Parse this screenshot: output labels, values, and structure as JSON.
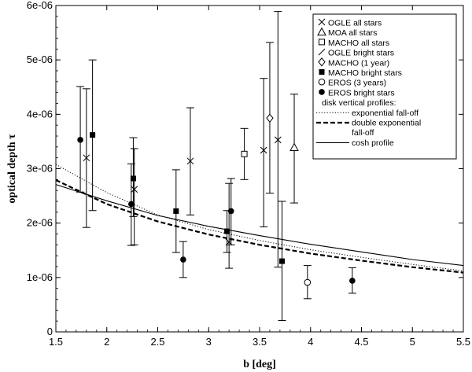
{
  "chart_data": {
    "type": "scatter",
    "title": "",
    "xlabel": "b [deg]",
    "ylabel": "optical depth τ",
    "xlim": [
      1.5,
      5.5
    ],
    "ylim": [
      0,
      6e-06
    ],
    "xticks": [
      1.5,
      2,
      2.5,
      3,
      3.5,
      4,
      4.5,
      5,
      5.5
    ],
    "xtick_labels": [
      "1.5",
      "2",
      "2.5",
      "3",
      "3.5",
      "4",
      "4.5",
      "5",
      "5.5"
    ],
    "yticks": [
      0,
      1e-06,
      2e-06,
      3e-06,
      4e-06,
      5e-06,
      6e-06
    ],
    "ytick_labels": [
      "0",
      "1e-06",
      "2e-06",
      "3e-06",
      "4e-06",
      "5e-06",
      "6e-06"
    ],
    "grid": false,
    "legend_position": "top-right",
    "series": [
      {
        "name": "OGLE all stars",
        "marker": "x",
        "points": [
          {
            "x": 1.8,
            "y": 3.2e-06,
            "lo": 1.92e-06,
            "hi": 4.47e-06
          },
          {
            "x": 2.27,
            "y": 2.62e-06,
            "lo": 1.6e-06,
            "hi": 3.37e-06
          },
          {
            "x": 2.82,
            "y": 3.14e-06,
            "lo": 2.15e-06,
            "hi": 4.12e-06
          },
          {
            "x": 3.2,
            "y": 1.65e-06,
            "lo": 1.17e-06,
            "hi": 2.73e-06
          },
          {
            "x": 3.54,
            "y": 3.34e-06,
            "lo": 1.93e-06,
            "hi": 4.66e-06
          },
          {
            "x": 3.68,
            "y": 3.53e-06,
            "lo": 1.19e-06,
            "hi": 5.89e-06
          }
        ]
      },
      {
        "name": "MOA all stars",
        "marker": "triangle",
        "points": [
          {
            "x": 3.84,
            "y": 3.39e-06,
            "lo": 2.37e-06,
            "hi": 4.37e-06
          }
        ]
      },
      {
        "name": "MACHO all stars",
        "marker": "square-open",
        "points": [
          {
            "x": 3.35,
            "y": 3.27e-06,
            "lo": 2.8e-06,
            "hi": 3.74e-06
          }
        ]
      },
      {
        "name": "OGLE bright stars",
        "marker": "slash",
        "points": []
      },
      {
        "name": "MACHO (1 year)",
        "marker": "diamond-open",
        "points": [
          {
            "x": 3.6,
            "y": 3.93e-06,
            "lo": 2.55e-06,
            "hi": 5.32e-06
          }
        ]
      },
      {
        "name": "MACHO bright stars",
        "marker": "square-filled",
        "points": [
          {
            "x": 1.86,
            "y": 3.62e-06,
            "lo": 2.23e-06,
            "hi": 5e-06
          },
          {
            "x": 2.26,
            "y": 2.82e-06,
            "lo": 2.12e-06,
            "hi": 3.57e-06
          },
          {
            "x": 2.68,
            "y": 2.22e-06,
            "lo": 1.46e-06,
            "hi": 2.98e-06
          },
          {
            "x": 3.18,
            "y": 1.85e-06,
            "lo": 1.46e-06,
            "hi": 2.23e-06
          },
          {
            "x": 3.72,
            "y": 1.3e-06,
            "lo": 2.1e-07,
            "hi": 2.4e-06
          }
        ]
      },
      {
        "name": "EROS (3 years)",
        "marker": "circle-open",
        "points": [
          {
            "x": 3.97,
            "y": 9.1e-07,
            "lo": 6.1e-07,
            "hi": 1.22e-06
          }
        ]
      },
      {
        "name": "EROS bright stars",
        "marker": "circle-filled",
        "points": [
          {
            "x": 1.74,
            "y": 3.53e-06,
            "lo": 2.57e-06,
            "hi": 4.51e-06
          },
          {
            "x": 2.24,
            "y": 2.35e-06,
            "lo": 1.59e-06,
            "hi": 3.09e-06
          },
          {
            "x": 2.75,
            "y": 1.33e-06,
            "lo": 1e-06,
            "hi": 1.66e-06
          },
          {
            "x": 3.22,
            "y": 2.22e-06,
            "lo": 1.6e-06,
            "hi": 2.82e-06
          },
          {
            "x": 4.41,
            "y": 9.4e-07,
            "lo": 7.1e-07,
            "hi": 1.18e-06
          }
        ]
      }
    ],
    "legend_header": "disk vertical profiles:",
    "curves": [
      {
        "name": "exponential fall-off",
        "style": "dotted",
        "x": [
          1.5,
          2.0,
          2.5,
          3.0,
          3.5,
          4.0,
          4.5,
          5.0,
          5.5
        ],
        "y": [
          3.08e-06,
          2.56e-06,
          2.15e-06,
          1.88e-06,
          1.68e-06,
          1.51e-06,
          1.37e-06,
          1.24e-06,
          1.12e-06
        ]
      },
      {
        "name": "double exponential fall-off",
        "style": "dashed",
        "x": [
          1.5,
          2.0,
          2.5,
          3.0,
          3.5,
          4.0,
          4.5,
          5.0,
          5.5
        ],
        "y": [
          2.79e-06,
          2.35e-06,
          2.03e-06,
          1.79e-06,
          1.6e-06,
          1.44e-06,
          1.31e-06,
          1.19e-06,
          1.09e-06
        ]
      },
      {
        "name": "cosh profile",
        "style": "solid",
        "x": [
          1.5,
          2.0,
          2.5,
          3.0,
          3.5,
          4.0,
          4.5,
          5.0,
          5.5
        ],
        "y": [
          2.71e-06,
          2.41e-06,
          2.14e-06,
          1.94e-06,
          1.77e-06,
          1.61e-06,
          1.47e-06,
          1.33e-06,
          1.22e-06
        ]
      }
    ],
    "legend_labels": [
      "OGLE all stars",
      "MOA all stars",
      "MACHO all stars",
      "OGLE bright stars",
      "MACHO (1 year)",
      "MACHO bright stars",
      "EROS (3 years)",
      "EROS bright stars",
      "disk vertical profiles:",
      "exponential fall-off",
      "double exponential",
      "fall-off",
      "cosh profile"
    ]
  }
}
